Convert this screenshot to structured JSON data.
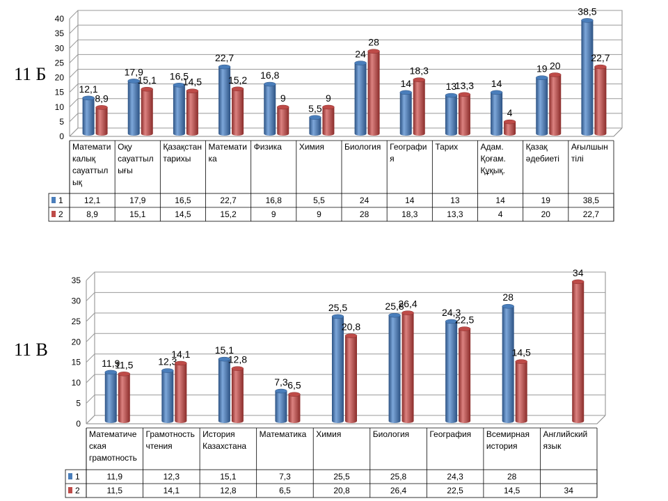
{
  "chart_data": [
    {
      "type": "bar",
      "class_label": "11 Б",
      "categories": [
        [
          "Математи",
          "калық",
          "сауаттыл",
          "ық"
        ],
        [
          "Оқу",
          "сауаттыл",
          "ығы"
        ],
        [
          "Қазақстан",
          "тарихы"
        ],
        [
          "Математи",
          "ка"
        ],
        [
          "Физика"
        ],
        [
          "Химия"
        ],
        [
          "Биология"
        ],
        [
          "Географи",
          "я"
        ],
        [
          "Тарих"
        ],
        [
          "Адам.",
          "Қоғам.",
          "Құқық."
        ],
        [
          "Қазақ",
          "әдебиеті"
        ],
        [
          "Ағылшын",
          "тілі"
        ]
      ],
      "series": [
        {
          "name": "1",
          "values": [
            12.1,
            17.9,
            16.5,
            22.7,
            16.8,
            5.5,
            24,
            14,
            13,
            14,
            19,
            38.5
          ],
          "labels": [
            "12,1",
            "17,9",
            "16,5",
            "22,7",
            "16,8",
            "5,5",
            "24",
            "14",
            "13",
            "14",
            "19",
            "38,5"
          ]
        },
        {
          "name": "2",
          "values": [
            8.9,
            15.1,
            14.5,
            15.2,
            9,
            9,
            28,
            18.3,
            13.3,
            4,
            20,
            22.7
          ],
          "labels": [
            "8,9",
            "15,1",
            "14,5",
            "15,2",
            "9",
            "9",
            "28",
            "18,3",
            "13,3",
            "4",
            "20",
            "22,7"
          ]
        }
      ],
      "ylim": [
        0,
        40
      ],
      "yticks": [
        "0",
        "5",
        "10",
        "15",
        "20",
        "25",
        "30",
        "35",
        "40"
      ],
      "colors": {
        "series1": "#4a7ebb",
        "series2": "#be4b48"
      }
    },
    {
      "type": "bar",
      "class_label": "11 В",
      "categories": [
        [
          "Математиче",
          "ская",
          "грамотность"
        ],
        [
          "Грамотность",
          "чтения"
        ],
        [
          "История",
          "Казахстана"
        ],
        [
          "Математика"
        ],
        [
          "Химия"
        ],
        [
          "Биология"
        ],
        [
          "География"
        ],
        [
          "Всемирная",
          "история"
        ],
        [
          "Английский",
          "язык"
        ]
      ],
      "series": [
        {
          "name": "1",
          "values": [
            11.9,
            12.3,
            15.1,
            7.3,
            25.5,
            25.8,
            24.3,
            28,
            null
          ],
          "labels": [
            "11,9",
            "12,3",
            "15,1",
            "7,3",
            "25,5",
            "25,8",
            "24,3",
            "28",
            ""
          ]
        },
        {
          "name": "2",
          "values": [
            11.5,
            14.1,
            12.8,
            6.5,
            20.8,
            26.4,
            22.5,
            14.5,
            34
          ],
          "labels": [
            "11,5",
            "14,1",
            "12,8",
            "6,5",
            "20,8",
            "26,4",
            "22,5",
            "14,5",
            "34"
          ]
        }
      ],
      "ylim": [
        0,
        35
      ],
      "yticks": [
        "0",
        "5",
        "10",
        "15",
        "20",
        "25",
        "30",
        "35"
      ],
      "colors": {
        "series1": "#4a7ebb",
        "series2": "#be4b48"
      }
    }
  ]
}
